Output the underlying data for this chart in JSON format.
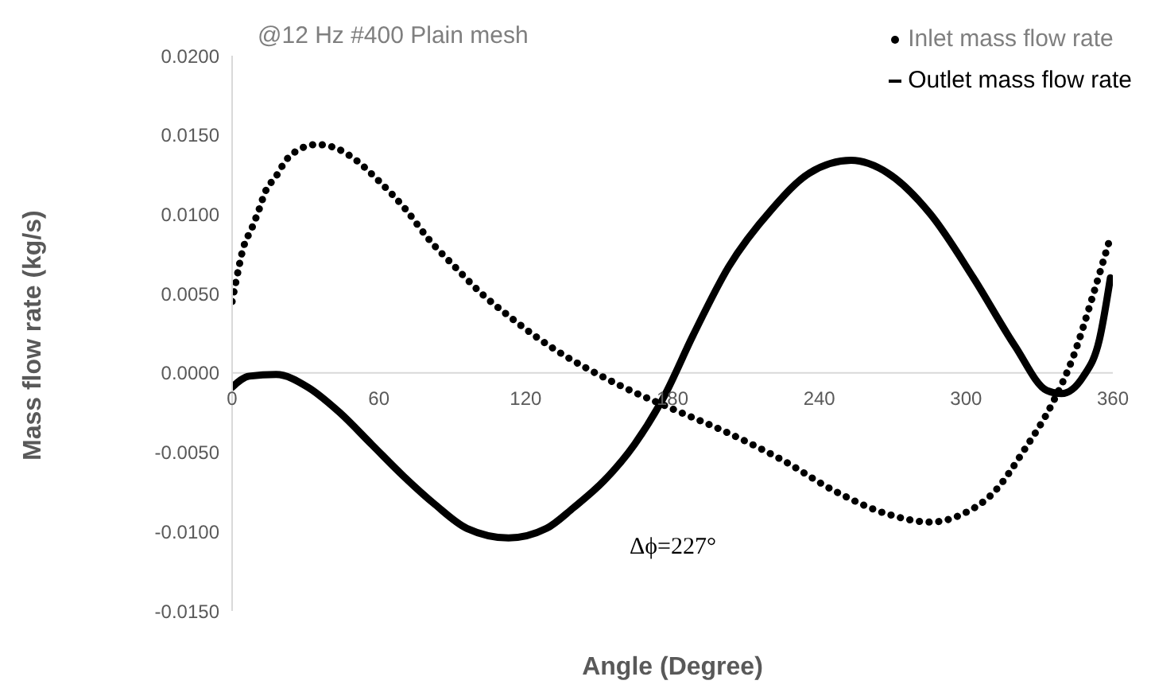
{
  "chart_data": {
    "type": "line",
    "title": "@12 Hz #400  Plain mesh",
    "xlabel": "Angle (Degree)",
    "ylabel": "Mass flow rate (kg/s)",
    "annotations": [
      "Δϕ=227°"
    ],
    "xlim": [
      0,
      360
    ],
    "xticks": [
      0,
      60,
      120,
      180,
      240,
      300,
      360
    ],
    "ylim": [
      -0.015,
      0.02
    ],
    "yticks": [
      {
        "value": -0.015,
        "label": "-0.0150"
      },
      {
        "value": -0.01,
        "label": "-0.0100"
      },
      {
        "value": -0.005,
        "label": "-0.0050"
      },
      {
        "value": 0,
        "label": "0.0000"
      },
      {
        "value": 0.005,
        "label": "0.0050"
      },
      {
        "value": 0.01,
        "label": "0.0100"
      },
      {
        "value": 0.015,
        "label": "0.0150"
      },
      {
        "value": 0.02,
        "label": "0.0200"
      }
    ],
    "grid": false,
    "legend": "top right",
    "marker": "none",
    "series": [
      {
        "name": "Inlet mass flow rate",
        "color": "#000000",
        "line_style": "dotted",
        "x": [
          0,
          1.5,
          4.8,
          8,
          11,
          13.5,
          18,
          22,
          27.5,
          34.5,
          42,
          49,
          60,
          71,
          80,
          91,
          102,
          113,
          125,
          138,
          151,
          160,
          182,
          203,
          225,
          247,
          268,
          285.5,
          298.5,
          311.5,
          324,
          335,
          344,
          351.5,
          356,
          358.5
        ],
        "values": [
          0.0045,
          0.0057,
          0.008,
          0.0091,
          0.0103,
          0.0114,
          0.0124,
          0.0134,
          0.0141,
          0.0144,
          0.0142,
          0.0136,
          0.0121,
          0.0103,
          0.0085,
          0.0067,
          0.005,
          0.0036,
          0.0022,
          0.0009,
          -0.0002,
          -0.0009,
          -0.0024,
          -0.0038,
          -0.0055,
          -0.0075,
          -0.0089,
          -0.0094,
          -0.0089,
          -0.0075,
          -0.0048,
          -0.002,
          0.0011,
          0.0047,
          0.007,
          0.0083
        ]
      },
      {
        "name": "Outlet mass flow rate",
        "color": "#000000",
        "line_style": "solid",
        "x": [
          0,
          7,
          18,
          31,
          44,
          57,
          70,
          83,
          96,
          113,
          128.5,
          139.5,
          152,
          164.5,
          176.5,
          188.5,
          203,
          220.5,
          236,
          253,
          268,
          285.5,
          303,
          320,
          333,
          339,
          348,
          354.5,
          359
        ],
        "values": [
          -0.0009,
          -0.0002,
          -0.0001,
          -0.0009,
          -0.0025,
          -0.0045,
          -0.0065,
          -0.0083,
          -0.0098,
          -0.0104,
          -0.0098,
          -0.0085,
          -0.0068,
          -0.0045,
          -0.0015,
          0.0024,
          0.0067,
          0.0103,
          0.0126,
          0.0134,
          0.0126,
          0.01,
          0.006,
          0.0017,
          -0.0011,
          -0.0013,
          -0.0002,
          0.0021,
          0.006
        ]
      }
    ]
  }
}
